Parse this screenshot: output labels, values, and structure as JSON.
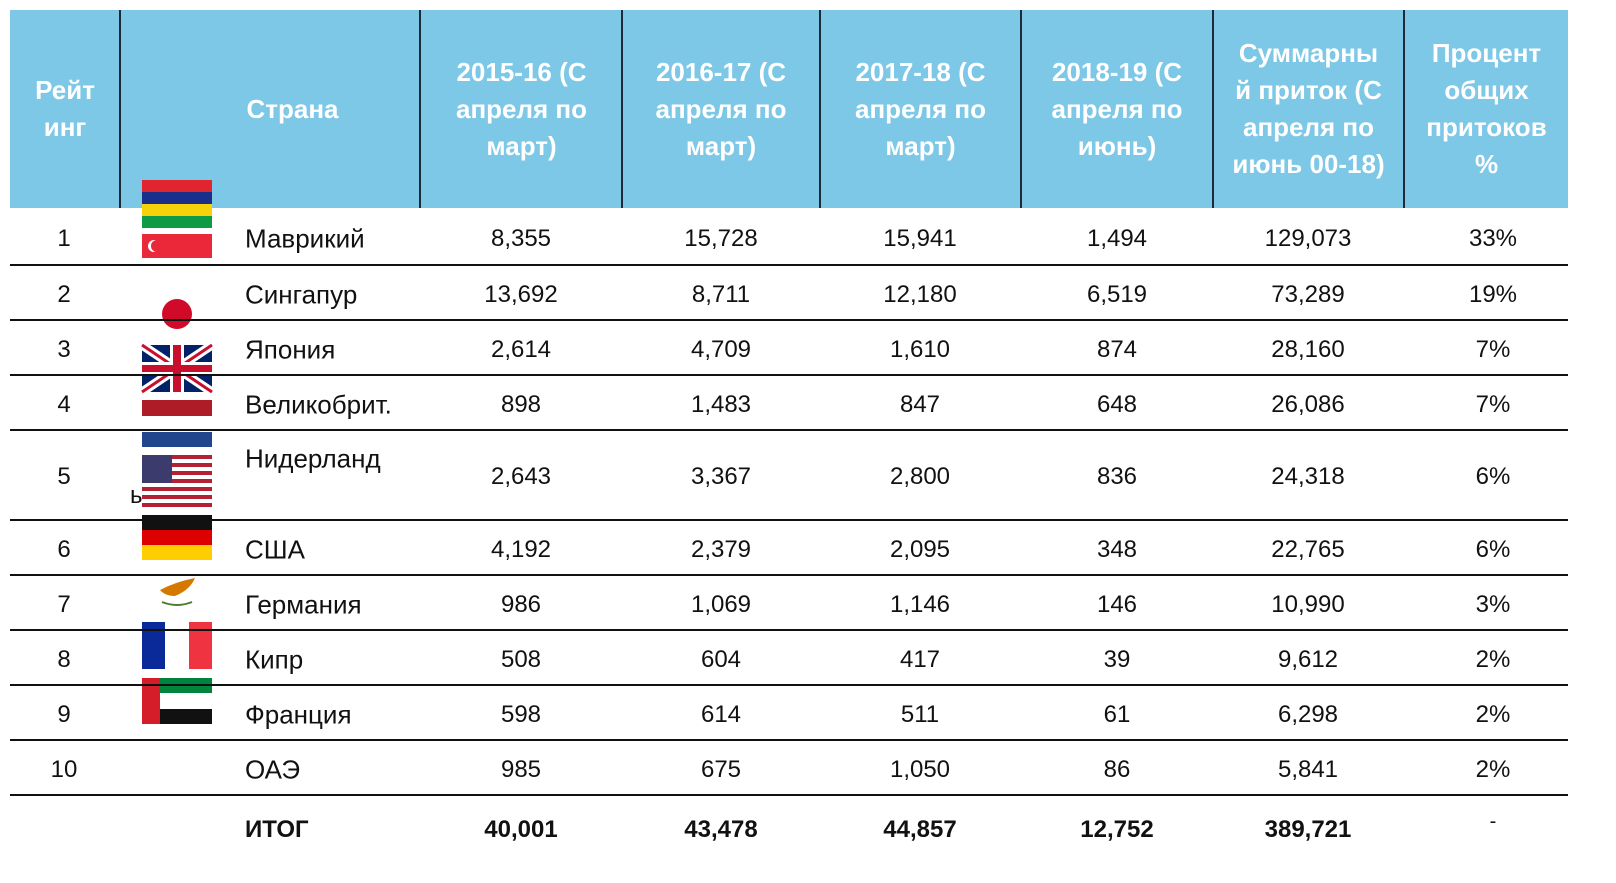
{
  "table": {
    "header": {
      "rank": "Рейт инг",
      "country": "Страна",
      "columns": [
        "2015-16 (С апреля по март)",
        "2016-17 (С апреля по март)",
        "2017-18 (С апреля по март)",
        "2018-19 (С апреля по июнь)",
        "Суммарный приток (С апреля по июнь 00-18)",
        "Процент общих притоков %"
      ]
    },
    "rows": [
      [
        "1",
        "Маврикий",
        "8,355",
        "15,728",
        "15,941",
        "1,494",
        "129,073",
        "33%"
      ],
      [
        "2",
        "Сингапур",
        "13,692",
        "8,711",
        "12,180",
        "6,519",
        "73,289",
        "19%"
      ],
      [
        "3",
        "Япония",
        "2,614",
        "4,709",
        "1,610",
        "874",
        "28,160",
        "7%"
      ],
      [
        "4",
        "Великобрит.",
        "898",
        "1,483",
        "847",
        "648",
        "26,086",
        "7%"
      ],
      [
        "5",
        "Нидерланд",
        "2,643",
        "3,367",
        "2,800",
        "836",
        "24,318",
        "6%"
      ],
      [
        "6",
        "США",
        "4,192",
        "2,379",
        "2,095",
        "348",
        "22,765",
        "6%"
      ],
      [
        "7",
        "Германия",
        "986",
        "1,069",
        "1,146",
        "146",
        "10,990",
        "3%"
      ],
      [
        "8",
        "Кипр",
        "508",
        "604",
        "417",
        "39",
        "9,612",
        "2%"
      ],
      [
        "9",
        "Франция",
        "598",
        "614",
        "511",
        "61",
        "6,298",
        "2%"
      ],
      [
        "10",
        "ОАЭ",
        "985",
        "675",
        "1,050",
        "86",
        "5,841",
        "2%"
      ]
    ],
    "total": {
      "label": "ИТОГ",
      "values": [
        "40,001",
        "43,478",
        "44,857",
        "12,752",
        "389,721"
      ]
    },
    "stray": {
      "letter": "ь",
      "dash": "-"
    }
  }
}
